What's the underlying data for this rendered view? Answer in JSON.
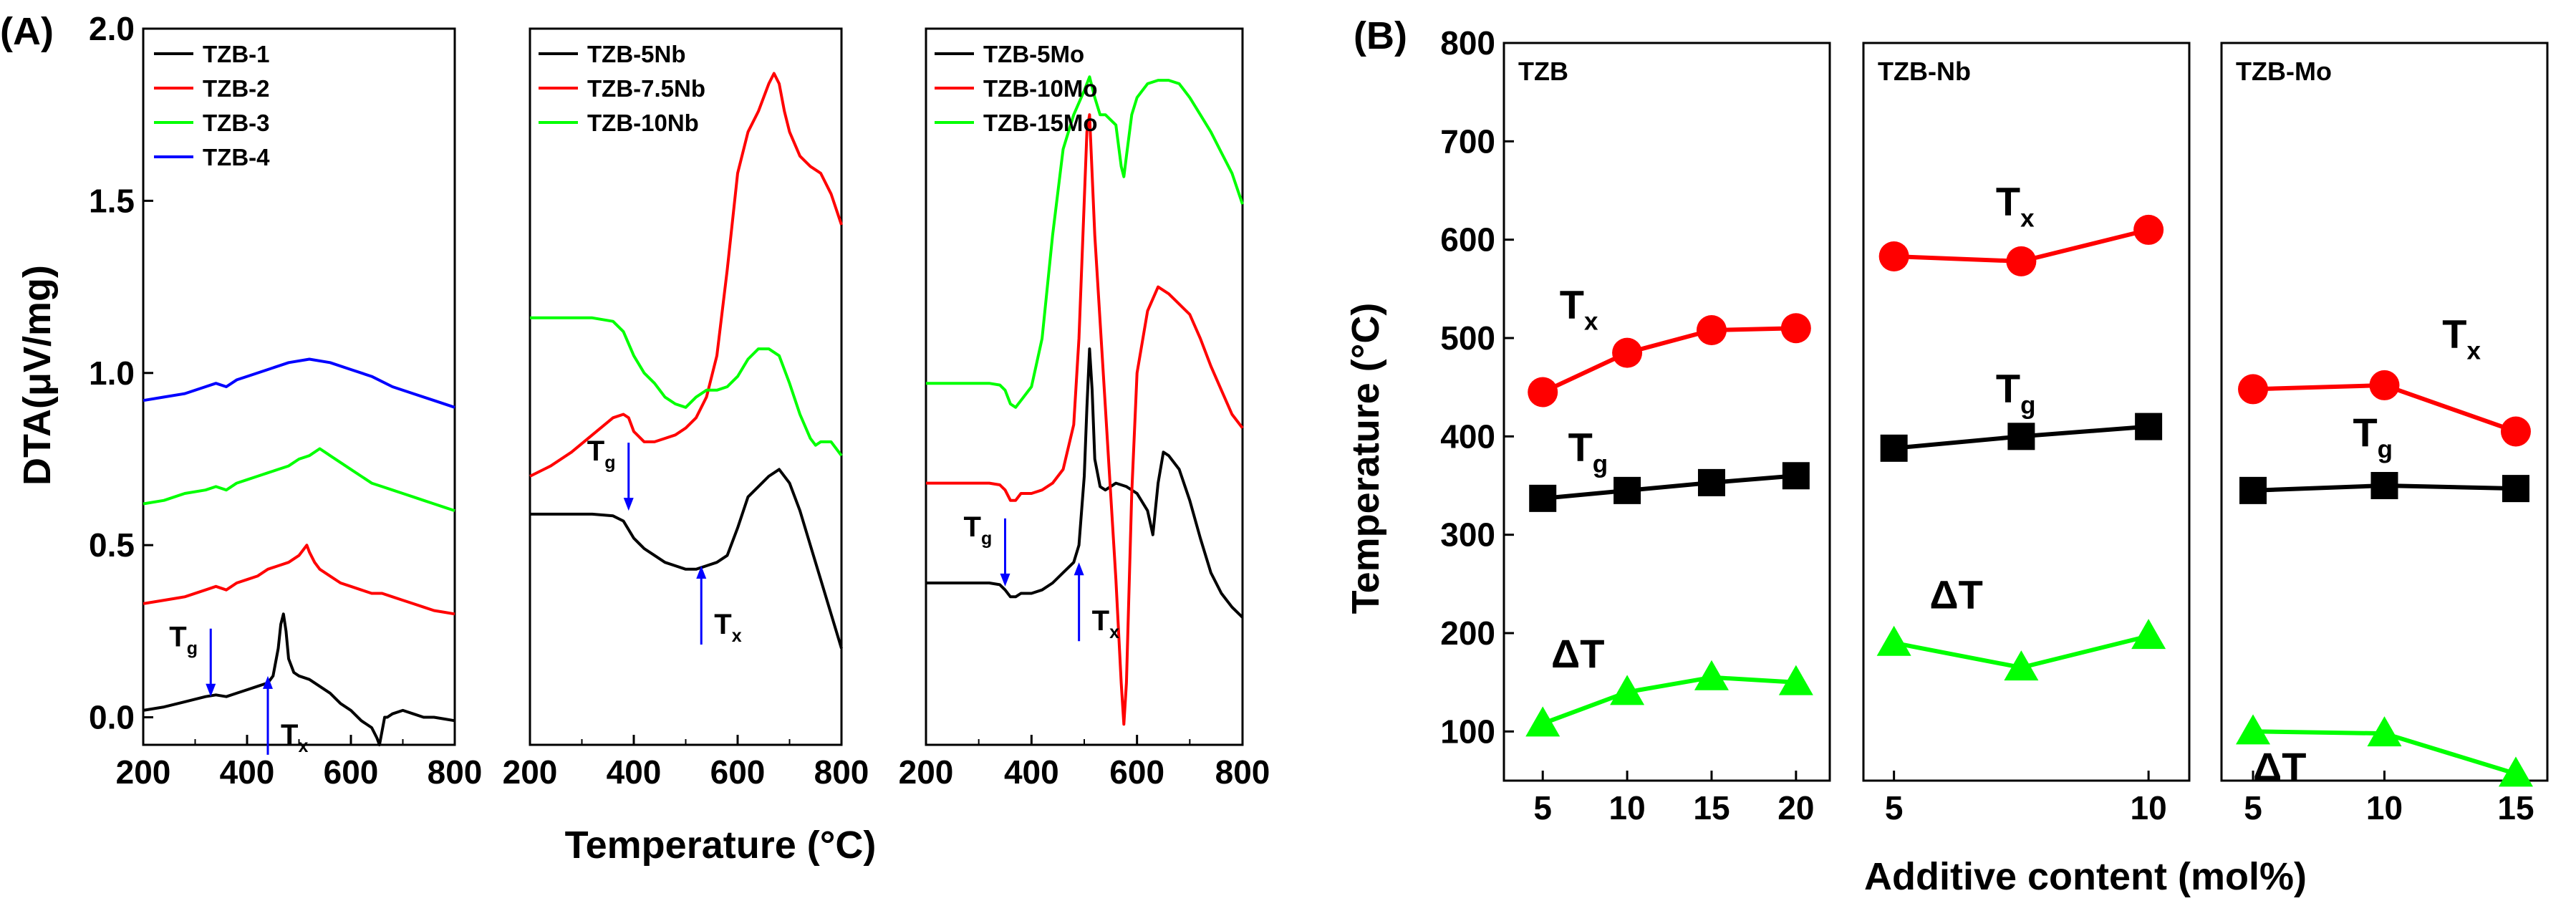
{
  "panel_labels": {
    "a": "(A)",
    "b": "(B)"
  },
  "chart_data": [
    {
      "id": "dta-tzb",
      "type": "line",
      "panel": "(A)",
      "xlim": [
        200,
        800
      ],
      "ylim": [
        -0.08,
        2.0
      ],
      "xticks": [
        200,
        400,
        600,
        800
      ],
      "yticks": [
        0.0,
        0.5,
        1.0,
        1.5,
        2.0
      ],
      "ytick_labels": [
        "0.0",
        "0.5",
        "1.0",
        "1.5",
        "2.0"
      ],
      "ylabel": "DTA(μV/mg)",
      "series": [
        {
          "name": "TZB-1",
          "color": "#000000",
          "x": [
            200,
            240,
            280,
            320,
            340,
            360,
            380,
            400,
            420,
            440,
            450,
            460,
            465,
            470,
            475,
            480,
            490,
            500,
            520,
            540,
            560,
            580,
            600,
            620,
            640,
            650,
            655,
            660,
            665,
            670,
            680,
            700,
            720,
            740,
            760,
            780,
            800
          ],
          "y": [
            0.02,
            0.03,
            0.045,
            0.06,
            0.065,
            0.06,
            0.07,
            0.08,
            0.09,
            0.1,
            0.12,
            0.2,
            0.27,
            0.3,
            0.25,
            0.17,
            0.13,
            0.12,
            0.11,
            0.09,
            0.07,
            0.04,
            0.02,
            -0.01,
            -0.03,
            -0.06,
            -0.08,
            -0.04,
            0.0,
            0.0,
            0.01,
            0.02,
            0.01,
            0.0,
            0.0,
            -0.005,
            -0.01
          ]
        },
        {
          "name": "TZB-2",
          "color": "#ff0000",
          "x": [
            200,
            240,
            280,
            320,
            340,
            360,
            380,
            400,
            420,
            440,
            460,
            480,
            500,
            510,
            515,
            520,
            530,
            540,
            560,
            580,
            600,
            620,
            640,
            660,
            680,
            700,
            720,
            740,
            760,
            780,
            800
          ],
          "y": [
            0.33,
            0.34,
            0.35,
            0.37,
            0.38,
            0.37,
            0.39,
            0.4,
            0.41,
            0.43,
            0.44,
            0.45,
            0.47,
            0.49,
            0.5,
            0.48,
            0.45,
            0.43,
            0.41,
            0.39,
            0.38,
            0.37,
            0.36,
            0.36,
            0.35,
            0.34,
            0.33,
            0.32,
            0.31,
            0.305,
            0.3
          ]
        },
        {
          "name": "TZB-3",
          "color": "#00ff00",
          "x": [
            200,
            240,
            280,
            320,
            340,
            360,
            380,
            400,
            420,
            440,
            460,
            480,
            500,
            520,
            540,
            550,
            560,
            580,
            600,
            620,
            640,
            660,
            680,
            700,
            720,
            740,
            760,
            780,
            800
          ],
          "y": [
            0.62,
            0.63,
            0.65,
            0.66,
            0.67,
            0.66,
            0.68,
            0.69,
            0.7,
            0.71,
            0.72,
            0.73,
            0.75,
            0.76,
            0.78,
            0.77,
            0.76,
            0.74,
            0.72,
            0.7,
            0.68,
            0.67,
            0.66,
            0.65,
            0.64,
            0.63,
            0.62,
            0.61,
            0.6
          ]
        },
        {
          "name": "TZB-4",
          "color": "#0000ff",
          "x": [
            200,
            240,
            280,
            320,
            340,
            360,
            380,
            400,
            440,
            480,
            520,
            560,
            600,
            640,
            680,
            720,
            760,
            800
          ],
          "y": [
            0.92,
            0.93,
            0.94,
            0.96,
            0.97,
            0.96,
            0.98,
            0.99,
            1.01,
            1.03,
            1.04,
            1.03,
            1.01,
            0.99,
            0.96,
            0.94,
            0.92,
            0.9
          ]
        }
      ],
      "annotations": [
        {
          "text": "T",
          "sub": "g",
          "kind": "arrow-down",
          "x": 330,
          "y": 0.06
        },
        {
          "text": "T",
          "sub": "x",
          "kind": "arrow-up",
          "x": 440,
          "y": 0.12
        }
      ]
    },
    {
      "id": "dta-tzb-nb",
      "type": "line",
      "panel": "(A)",
      "xlim": [
        200,
        800
      ],
      "ylim": [
        -0.08,
        2.0
      ],
      "xticks": [
        200,
        400,
        600,
        800
      ],
      "series": [
        {
          "name": "TZB-5Nb",
          "color": "#000000",
          "x": [
            200,
            240,
            280,
            320,
            360,
            380,
            400,
            420,
            440,
            460,
            480,
            500,
            520,
            540,
            560,
            580,
            600,
            620,
            640,
            660,
            680,
            700,
            720,
            740,
            760,
            780,
            800
          ],
          "y": [
            0.59,
            0.59,
            0.59,
            0.59,
            0.585,
            0.57,
            0.52,
            0.49,
            0.47,
            0.45,
            0.44,
            0.43,
            0.43,
            0.44,
            0.45,
            0.47,
            0.55,
            0.64,
            0.67,
            0.7,
            0.72,
            0.68,
            0.6,
            0.5,
            0.4,
            0.3,
            0.2
          ]
        },
        {
          "name": "TZB-7.5Nb",
          "color": "#ff0000",
          "x": [
            200,
            240,
            280,
            320,
            360,
            380,
            390,
            400,
            420,
            440,
            460,
            480,
            500,
            520,
            540,
            560,
            580,
            600,
            620,
            640,
            660,
            670,
            680,
            690,
            700,
            720,
            740,
            760,
            780,
            800
          ],
          "y": [
            0.7,
            0.73,
            0.77,
            0.82,
            0.87,
            0.88,
            0.87,
            0.83,
            0.8,
            0.8,
            0.81,
            0.82,
            0.84,
            0.87,
            0.93,
            1.05,
            1.3,
            1.58,
            1.7,
            1.76,
            1.84,
            1.87,
            1.84,
            1.76,
            1.7,
            1.63,
            1.6,
            1.58,
            1.52,
            1.43
          ]
        },
        {
          "name": "TZB-10Nb",
          "color": "#00ff00",
          "x": [
            200,
            240,
            280,
            320,
            360,
            380,
            400,
            420,
            440,
            460,
            480,
            500,
            520,
            540,
            560,
            580,
            600,
            620,
            640,
            660,
            680,
            700,
            720,
            740,
            750,
            760,
            780,
            800
          ],
          "y": [
            1.16,
            1.16,
            1.16,
            1.16,
            1.15,
            1.12,
            1.05,
            1.0,
            0.97,
            0.93,
            0.91,
            0.9,
            0.93,
            0.95,
            0.95,
            0.96,
            0.99,
            1.04,
            1.07,
            1.07,
            1.05,
            0.97,
            0.88,
            0.81,
            0.79,
            0.8,
            0.8,
            0.76
          ]
        }
      ],
      "annotations": [
        {
          "text": "T",
          "sub": "g",
          "kind": "arrow-down",
          "x": 390,
          "y": 0.6
        },
        {
          "text": "T",
          "sub": "x",
          "kind": "arrow-up",
          "x": 530,
          "y": 0.44
        }
      ]
    },
    {
      "id": "dta-tzb-mo",
      "type": "line",
      "panel": "(A)",
      "xlim": [
        200,
        800
      ],
      "ylim": [
        -0.08,
        2.0
      ],
      "xticks": [
        200,
        400,
        600,
        800
      ],
      "series": [
        {
          "name": "TZB-5Mo",
          "color": "#000000",
          "x": [
            200,
            240,
            280,
            320,
            340,
            350,
            360,
            370,
            380,
            400,
            420,
            440,
            460,
            480,
            490,
            500,
            505,
            510,
            515,
            520,
            530,
            540,
            560,
            580,
            600,
            620,
            630,
            640,
            650,
            660,
            680,
            700,
            720,
            740,
            760,
            780,
            800
          ],
          "y": [
            0.39,
            0.39,
            0.39,
            0.39,
            0.385,
            0.37,
            0.35,
            0.35,
            0.36,
            0.36,
            0.37,
            0.39,
            0.42,
            0.45,
            0.5,
            0.7,
            0.9,
            1.07,
            0.95,
            0.75,
            0.67,
            0.66,
            0.68,
            0.67,
            0.65,
            0.6,
            0.53,
            0.68,
            0.77,
            0.76,
            0.72,
            0.63,
            0.52,
            0.42,
            0.36,
            0.32,
            0.29
          ]
        },
        {
          "name": "TZB-10Mo",
          "color": "#ff0000",
          "x": [
            200,
            240,
            280,
            320,
            340,
            350,
            360,
            370,
            380,
            400,
            420,
            440,
            460,
            480,
            490,
            500,
            505,
            510,
            520,
            540,
            560,
            570,
            575,
            580,
            590,
            600,
            620,
            640,
            660,
            680,
            700,
            720,
            740,
            760,
            780,
            800
          ],
          "y": [
            0.68,
            0.68,
            0.68,
            0.68,
            0.675,
            0.66,
            0.63,
            0.63,
            0.65,
            0.65,
            0.66,
            0.68,
            0.72,
            0.85,
            1.1,
            1.5,
            1.7,
            1.75,
            1.4,
            0.9,
            0.4,
            0.1,
            -0.02,
            0.1,
            0.65,
            1.0,
            1.18,
            1.25,
            1.23,
            1.2,
            1.17,
            1.1,
            1.02,
            0.95,
            0.88,
            0.84
          ]
        },
        {
          "name": "TZB-15Mo",
          "color": "#00ff00",
          "x": [
            200,
            240,
            280,
            320,
            340,
            350,
            360,
            370,
            380,
            400,
            420,
            440,
            460,
            480,
            500,
            510,
            520,
            530,
            540,
            560,
            570,
            575,
            580,
            590,
            600,
            620,
            640,
            660,
            680,
            700,
            720,
            740,
            760,
            780,
            800
          ],
          "y": [
            0.97,
            0.97,
            0.97,
            0.97,
            0.965,
            0.95,
            0.91,
            0.9,
            0.92,
            0.96,
            1.1,
            1.4,
            1.65,
            1.75,
            1.82,
            1.86,
            1.8,
            1.75,
            1.75,
            1.72,
            1.6,
            1.57,
            1.63,
            1.75,
            1.8,
            1.84,
            1.85,
            1.85,
            1.84,
            1.8,
            1.75,
            1.7,
            1.64,
            1.58,
            1.49
          ]
        }
      ],
      "annotations": [
        {
          "text": "T",
          "sub": "g",
          "kind": "arrow-down",
          "x": 350,
          "y": 0.38
        },
        {
          "text": "T",
          "sub": "x",
          "kind": "arrow-up",
          "x": 490,
          "y": 0.45
        }
      ]
    },
    {
      "id": "temp-tzb",
      "type": "line",
      "panel": "(B)",
      "panel_name": "TZB",
      "xlim": [
        2.7,
        22.0
      ],
      "ylim": [
        50,
        800
      ],
      "xticks": [
        5,
        10,
        15,
        20
      ],
      "yticks": [
        100,
        200,
        300,
        400,
        500,
        600,
        700,
        800
      ],
      "ylabel": "Temperature (°C)",
      "series": [
        {
          "name": "Tx",
          "color": "#ff0000",
          "marker": "circle",
          "x": [
            5,
            10,
            15,
            20
          ],
          "y": [
            445,
            485,
            508,
            510
          ]
        },
        {
          "name": "Tg",
          "color": "#000000",
          "marker": "square",
          "x": [
            5,
            10,
            15,
            20
          ],
          "y": [
            337,
            345,
            353,
            360
          ]
        },
        {
          "name": "ΔT",
          "color": "#00ff00",
          "marker": "triangle",
          "x": [
            5,
            10,
            15,
            20
          ],
          "y": [
            108,
            140,
            155,
            150
          ]
        }
      ],
      "labels": [
        {
          "text": "T",
          "sub": "x",
          "x": 6,
          "y": 520
        },
        {
          "text": "T",
          "sub": "g",
          "x": 6.5,
          "y": 375
        },
        {
          "text": "ΔT",
          "sub": "",
          "x": 5.5,
          "y": 165
        }
      ]
    },
    {
      "id": "temp-tzb-nb",
      "type": "line",
      "panel": "(B)",
      "panel_name": "TZB-Nb",
      "xlim": [
        4.4,
        10.8
      ],
      "ylim": [
        50,
        800
      ],
      "xticks": [
        5,
        10
      ],
      "series": [
        {
          "name": "Tx",
          "color": "#ff0000",
          "marker": "circle",
          "x": [
            5,
            7.5,
            10
          ],
          "y": [
            583,
            578,
            610
          ]
        },
        {
          "name": "Tg",
          "color": "#000000",
          "marker": "square",
          "x": [
            5,
            7.5,
            10
          ],
          "y": [
            388,
            400,
            410
          ]
        },
        {
          "name": "ΔT",
          "color": "#00ff00",
          "marker": "triangle",
          "x": [
            5,
            7.5,
            10
          ],
          "y": [
            190,
            165,
            197
          ]
        }
      ],
      "labels": [
        {
          "text": "T",
          "sub": "x",
          "x": 7.0,
          "y": 625
        },
        {
          "text": "T",
          "sub": "g",
          "x": 7.0,
          "y": 435
        },
        {
          "text": "ΔT",
          "sub": "",
          "x": 5.7,
          "y": 225
        }
      ]
    },
    {
      "id": "temp-tzb-mo",
      "type": "line",
      "panel": "(B)",
      "panel_name": "TZB-Mo",
      "xlim": [
        3.8,
        16.2
      ],
      "ylim": [
        50,
        800
      ],
      "xticks": [
        5,
        10,
        15
      ],
      "series": [
        {
          "name": "Tx",
          "color": "#ff0000",
          "marker": "circle",
          "x": [
            5,
            10,
            15
          ],
          "y": [
            448,
            452,
            405
          ]
        },
        {
          "name": "Tg",
          "color": "#000000",
          "marker": "square",
          "x": [
            5,
            10,
            15
          ],
          "y": [
            345,
            350,
            347
          ]
        },
        {
          "name": "ΔT",
          "color": "#00ff00",
          "marker": "triangle",
          "x": [
            5,
            10,
            15
          ],
          "y": [
            100,
            98,
            57
          ]
        }
      ],
      "labels": [
        {
          "text": "T",
          "sub": "x",
          "x": 12.2,
          "y": 490
        },
        {
          "text": "T",
          "sub": "g",
          "x": 8.8,
          "y": 390
        },
        {
          "text": "ΔT",
          "sub": "",
          "x": 5.0,
          "y": 50
        }
      ]
    }
  ],
  "axis_titles": {
    "a_x": "Temperature (°C)",
    "a_y": "DTA(μV/mg)",
    "b_x": "Additive content (mol%)",
    "b_y": "Temperature (°C)"
  }
}
